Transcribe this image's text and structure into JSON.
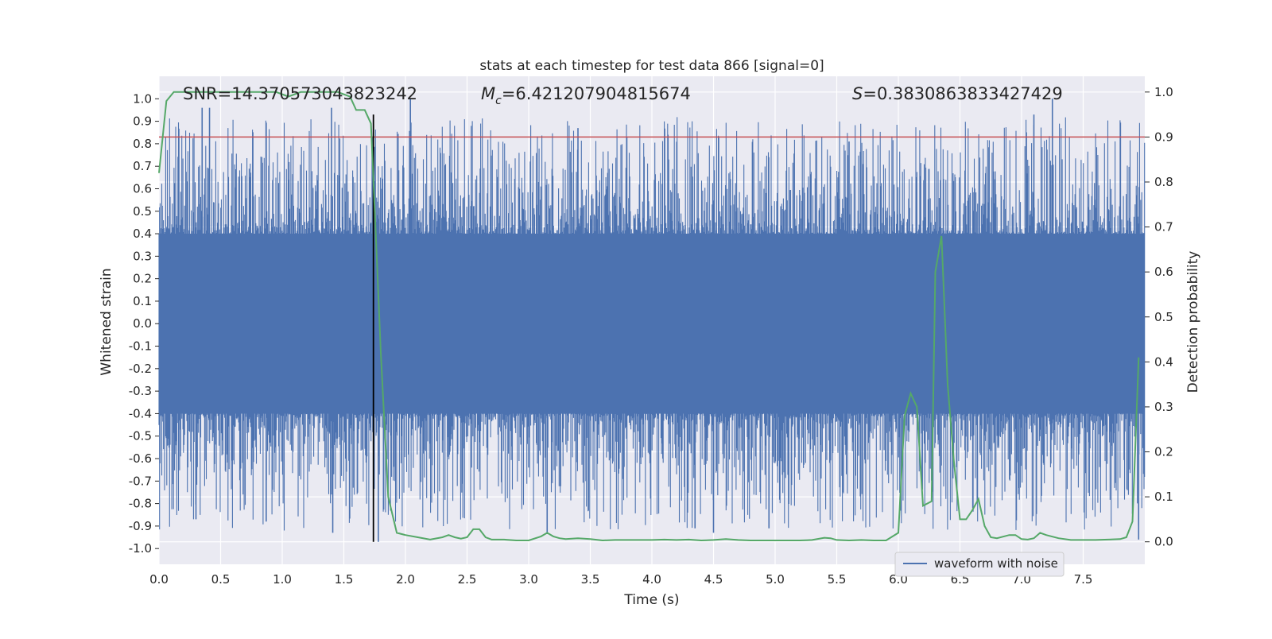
{
  "chart_data": {
    "type": "line",
    "title": "stats at each timestep for test data 866 [signal=0]",
    "xlabel": "Time (s)",
    "ylabel_left": "Whitened strain",
    "ylabel_right": "Detection probability",
    "xlim": [
      0.0,
      8.0
    ],
    "ylim_left": [
      -1.07,
      1.1
    ],
    "ylim_right": [
      -0.05,
      1.035
    ],
    "grid": true,
    "x_ticks": [
      "0.0",
      "0.5",
      "1.0",
      "1.5",
      "2.0",
      "2.5",
      "3.0",
      "3.5",
      "4.0",
      "4.5",
      "5.0",
      "5.5",
      "6.0",
      "6.5",
      "7.0",
      "7.5"
    ],
    "y_left_ticks": [
      "1.0",
      "0.9",
      "0.8",
      "0.7",
      "0.6",
      "0.5",
      "0.4",
      "0.3",
      "0.2",
      "0.1",
      "0.0",
      "-0.1",
      "-0.2",
      "-0.3",
      "-0.4",
      "-0.5",
      "-0.6",
      "-0.7",
      "-0.8",
      "-0.9",
      "-1.0"
    ],
    "y_right_ticks": [
      "1.0",
      "0.9",
      "0.8",
      "0.7",
      "0.6",
      "0.5",
      "0.4",
      "0.3",
      "0.2",
      "0.1",
      "0.0"
    ],
    "annotations": {
      "snr": "SNR=14.370573043823242",
      "mc_symbol": "M",
      "mc_sub": "c",
      "mc_value": "=6.421207904815674",
      "s_symbol": "S",
      "s_value": "=0.3830863833427429"
    },
    "threshold_line": {
      "y_right": 0.9,
      "color": "#c44e52"
    },
    "vertical_marker": {
      "x": 1.74,
      "color": "#000000"
    },
    "legend": {
      "label": "waveform with noise",
      "location": "lower right"
    },
    "series": [
      {
        "name": "waveform with noise",
        "axis": "left",
        "color": "#4c72b0",
        "kind": "noise_band",
        "band_core": [
          -0.4,
          0.4
        ],
        "peak_range": [
          -0.97,
          1.0
        ],
        "notable_peaks": [
          {
            "x": 0.35,
            "y": 0.96
          },
          {
            "x": 0.41,
            "y": 0.96
          },
          {
            "x": 1.4,
            "y": 0.96
          },
          {
            "x": 1.73,
            "y": 0.83
          },
          {
            "x": 2.04,
            "y": 1.0
          },
          {
            "x": 3.4,
            "y": 0.87
          },
          {
            "x": 5.6,
            "y": 0.81
          },
          {
            "x": 7.25,
            "y": 1.0
          },
          {
            "x": 7.1,
            "y": 0.93
          },
          {
            "x": 0.3,
            "y": -0.87
          },
          {
            "x": 0.87,
            "y": -0.88
          },
          {
            "x": 1.41,
            "y": -0.93
          },
          {
            "x": 1.78,
            "y": -0.97
          },
          {
            "x": 3.15,
            "y": -0.93
          },
          {
            "x": 4.35,
            "y": -0.91
          },
          {
            "x": 4.5,
            "y": -0.93
          },
          {
            "x": 4.95,
            "y": -0.91
          },
          {
            "x": 7.95,
            "y": -0.96
          }
        ]
      },
      {
        "name": "detection probability",
        "axis": "right",
        "color": "#55a868",
        "x": [
          0.0,
          0.06,
          0.12,
          0.2,
          0.4,
          0.6,
          0.8,
          0.95,
          1.05,
          1.15,
          1.3,
          1.45,
          1.55,
          1.6,
          1.67,
          1.72,
          1.76,
          1.8,
          1.86,
          1.93,
          2.0,
          2.1,
          2.2,
          2.3,
          2.35,
          2.4,
          2.45,
          2.5,
          2.55,
          2.6,
          2.65,
          2.7,
          2.8,
          2.9,
          3.0,
          3.1,
          3.15,
          3.2,
          3.25,
          3.3,
          3.4,
          3.5,
          3.6,
          3.7,
          3.8,
          3.9,
          4.0,
          4.1,
          4.2,
          4.3,
          4.4,
          4.5,
          4.6,
          4.7,
          4.8,
          4.9,
          5.0,
          5.1,
          5.2,
          5.3,
          5.4,
          5.45,
          5.5,
          5.6,
          5.7,
          5.8,
          5.9,
          6.0,
          6.05,
          6.1,
          6.15,
          6.2,
          6.27,
          6.3,
          6.35,
          6.4,
          6.45,
          6.5,
          6.55,
          6.6,
          6.65,
          6.7,
          6.75,
          6.8,
          6.9,
          6.95,
          7.0,
          7.05,
          7.1,
          7.15,
          7.2,
          7.3,
          7.4,
          7.5,
          7.6,
          7.7,
          7.8,
          7.85,
          7.9,
          7.95
        ],
        "values": [
          0.82,
          0.98,
          1.0,
          1.0,
          1.0,
          1.0,
          1.0,
          1.0,
          0.99,
          1.0,
          1.0,
          1.0,
          0.99,
          0.96,
          0.96,
          0.93,
          0.68,
          0.42,
          0.1,
          0.02,
          0.015,
          0.01,
          0.005,
          0.01,
          0.015,
          0.01,
          0.007,
          0.01,
          0.028,
          0.028,
          0.01,
          0.005,
          0.005,
          0.003,
          0.003,
          0.012,
          0.02,
          0.012,
          0.008,
          0.006,
          0.008,
          0.006,
          0.003,
          0.004,
          0.004,
          0.004,
          0.004,
          0.005,
          0.004,
          0.005,
          0.003,
          0.004,
          0.006,
          0.004,
          0.003,
          0.003,
          0.003,
          0.003,
          0.003,
          0.004,
          0.009,
          0.008,
          0.004,
          0.003,
          0.004,
          0.003,
          0.003,
          0.02,
          0.28,
          0.33,
          0.3,
          0.08,
          0.09,
          0.6,
          0.68,
          0.35,
          0.18,
          0.05,
          0.05,
          0.07,
          0.095,
          0.035,
          0.01,
          0.008,
          0.015,
          0.015,
          0.006,
          0.005,
          0.008,
          0.02,
          0.015,
          0.008,
          0.004,
          0.004,
          0.004,
          0.005,
          0.006,
          0.01,
          0.045,
          0.41
        ]
      }
    ]
  }
}
